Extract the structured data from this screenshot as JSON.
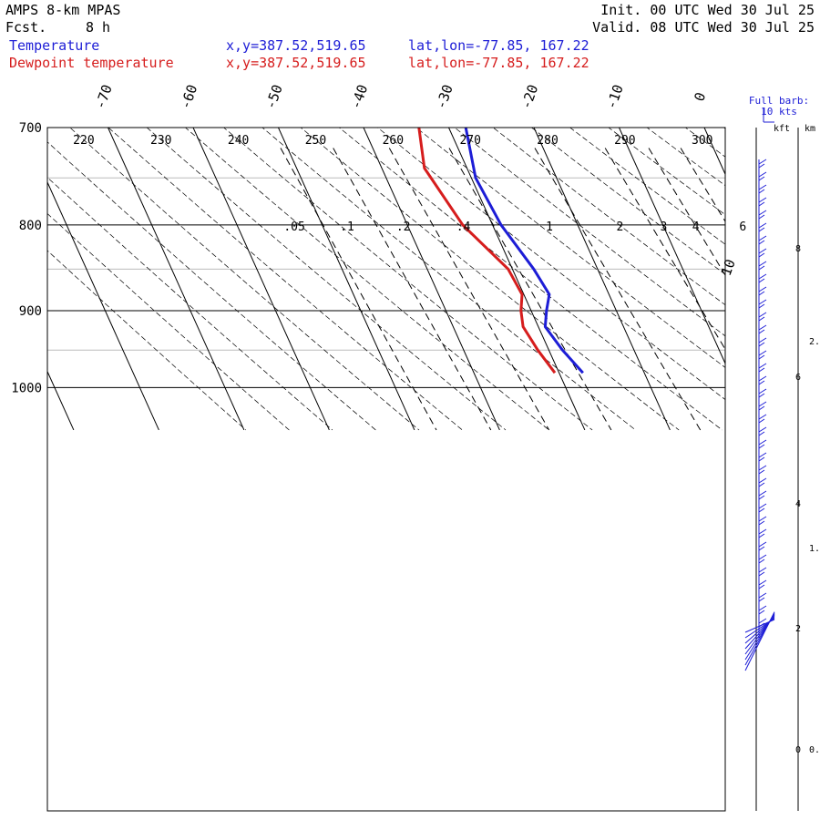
{
  "header": {
    "model": "AMPS 8-km MPAS",
    "forecast_label": "Fcst.",
    "forecast_value": "8 h",
    "init": "Init. 00 UTC Wed 30 Jul 25",
    "valid": "Valid. 08 UTC Wed 30 Jul 25",
    "temp_label": "Temperature",
    "dew_label": "Dewpoint temperature",
    "xy": "x,y=387.52,519.65",
    "latlon": "lat,lon=-77.85, 167.22"
  },
  "colors": {
    "temperature": "#1d1dd6",
    "dewpoint": "#d61d1d",
    "grid": "#000000",
    "isobar_minor": "#bbbbbb"
  },
  "chart_data": {
    "type": "line",
    "title": "",
    "pressure_levels_labeled": [
      "700",
      "800",
      "900",
      "1000"
    ],
    "isobars_major": [
      700,
      800,
      900,
      1000
    ],
    "isobars_minor": [
      750,
      850,
      950
    ],
    "pressure_range": [
      700,
      1050
    ],
    "isotherm_labels": [
      "-70",
      "-60",
      "-50",
      "-40",
      "-30",
      "-20",
      "-10",
      "0",
      "10"
    ],
    "isotherms": [
      -80,
      -70,
      -60,
      -50,
      -40,
      -30,
      -20,
      -10,
      0,
      10
    ],
    "dry_adiabat_labels": [
      "220",
      "230",
      "240",
      "250",
      "260",
      "270",
      "280",
      "290",
      "300"
    ],
    "mixing_ratio_labels": [
      ".05",
      ".1",
      ".2",
      ".4",
      "1",
      "2",
      "3",
      "4",
      "6"
    ],
    "series": [
      {
        "name": "Temperature",
        "color": "#1d1dd6",
        "points": [
          [
            700,
            -28.0
          ],
          [
            750,
            -29.5
          ],
          [
            800,
            -29.0
          ],
          [
            850,
            -27.5
          ],
          [
            880,
            -27.0
          ],
          [
            900,
            -28.2
          ],
          [
            920,
            -29.2
          ],
          [
            950,
            -28.4
          ],
          [
            980,
            -27.2
          ]
        ]
      },
      {
        "name": "Dewpoint temperature",
        "color": "#d61d1d",
        "points": [
          [
            700,
            -33.5
          ],
          [
            740,
            -35.0
          ],
          [
            800,
            -33.5
          ],
          [
            850,
            -30.5
          ],
          [
            880,
            -30.2
          ],
          [
            900,
            -31.2
          ],
          [
            920,
            -31.8
          ],
          [
            950,
            -31.3
          ],
          [
            980,
            -30.5
          ]
        ]
      }
    ],
    "wind_panel": {
      "title": "Full barb:",
      "subtitle": "10 kts",
      "axis_labels": [
        "kft",
        "km"
      ],
      "kft_labels": [
        "8",
        "6",
        "4",
        "2",
        "0"
      ],
      "km_labels": [
        "2.",
        "1.",
        "0."
      ]
    }
  }
}
